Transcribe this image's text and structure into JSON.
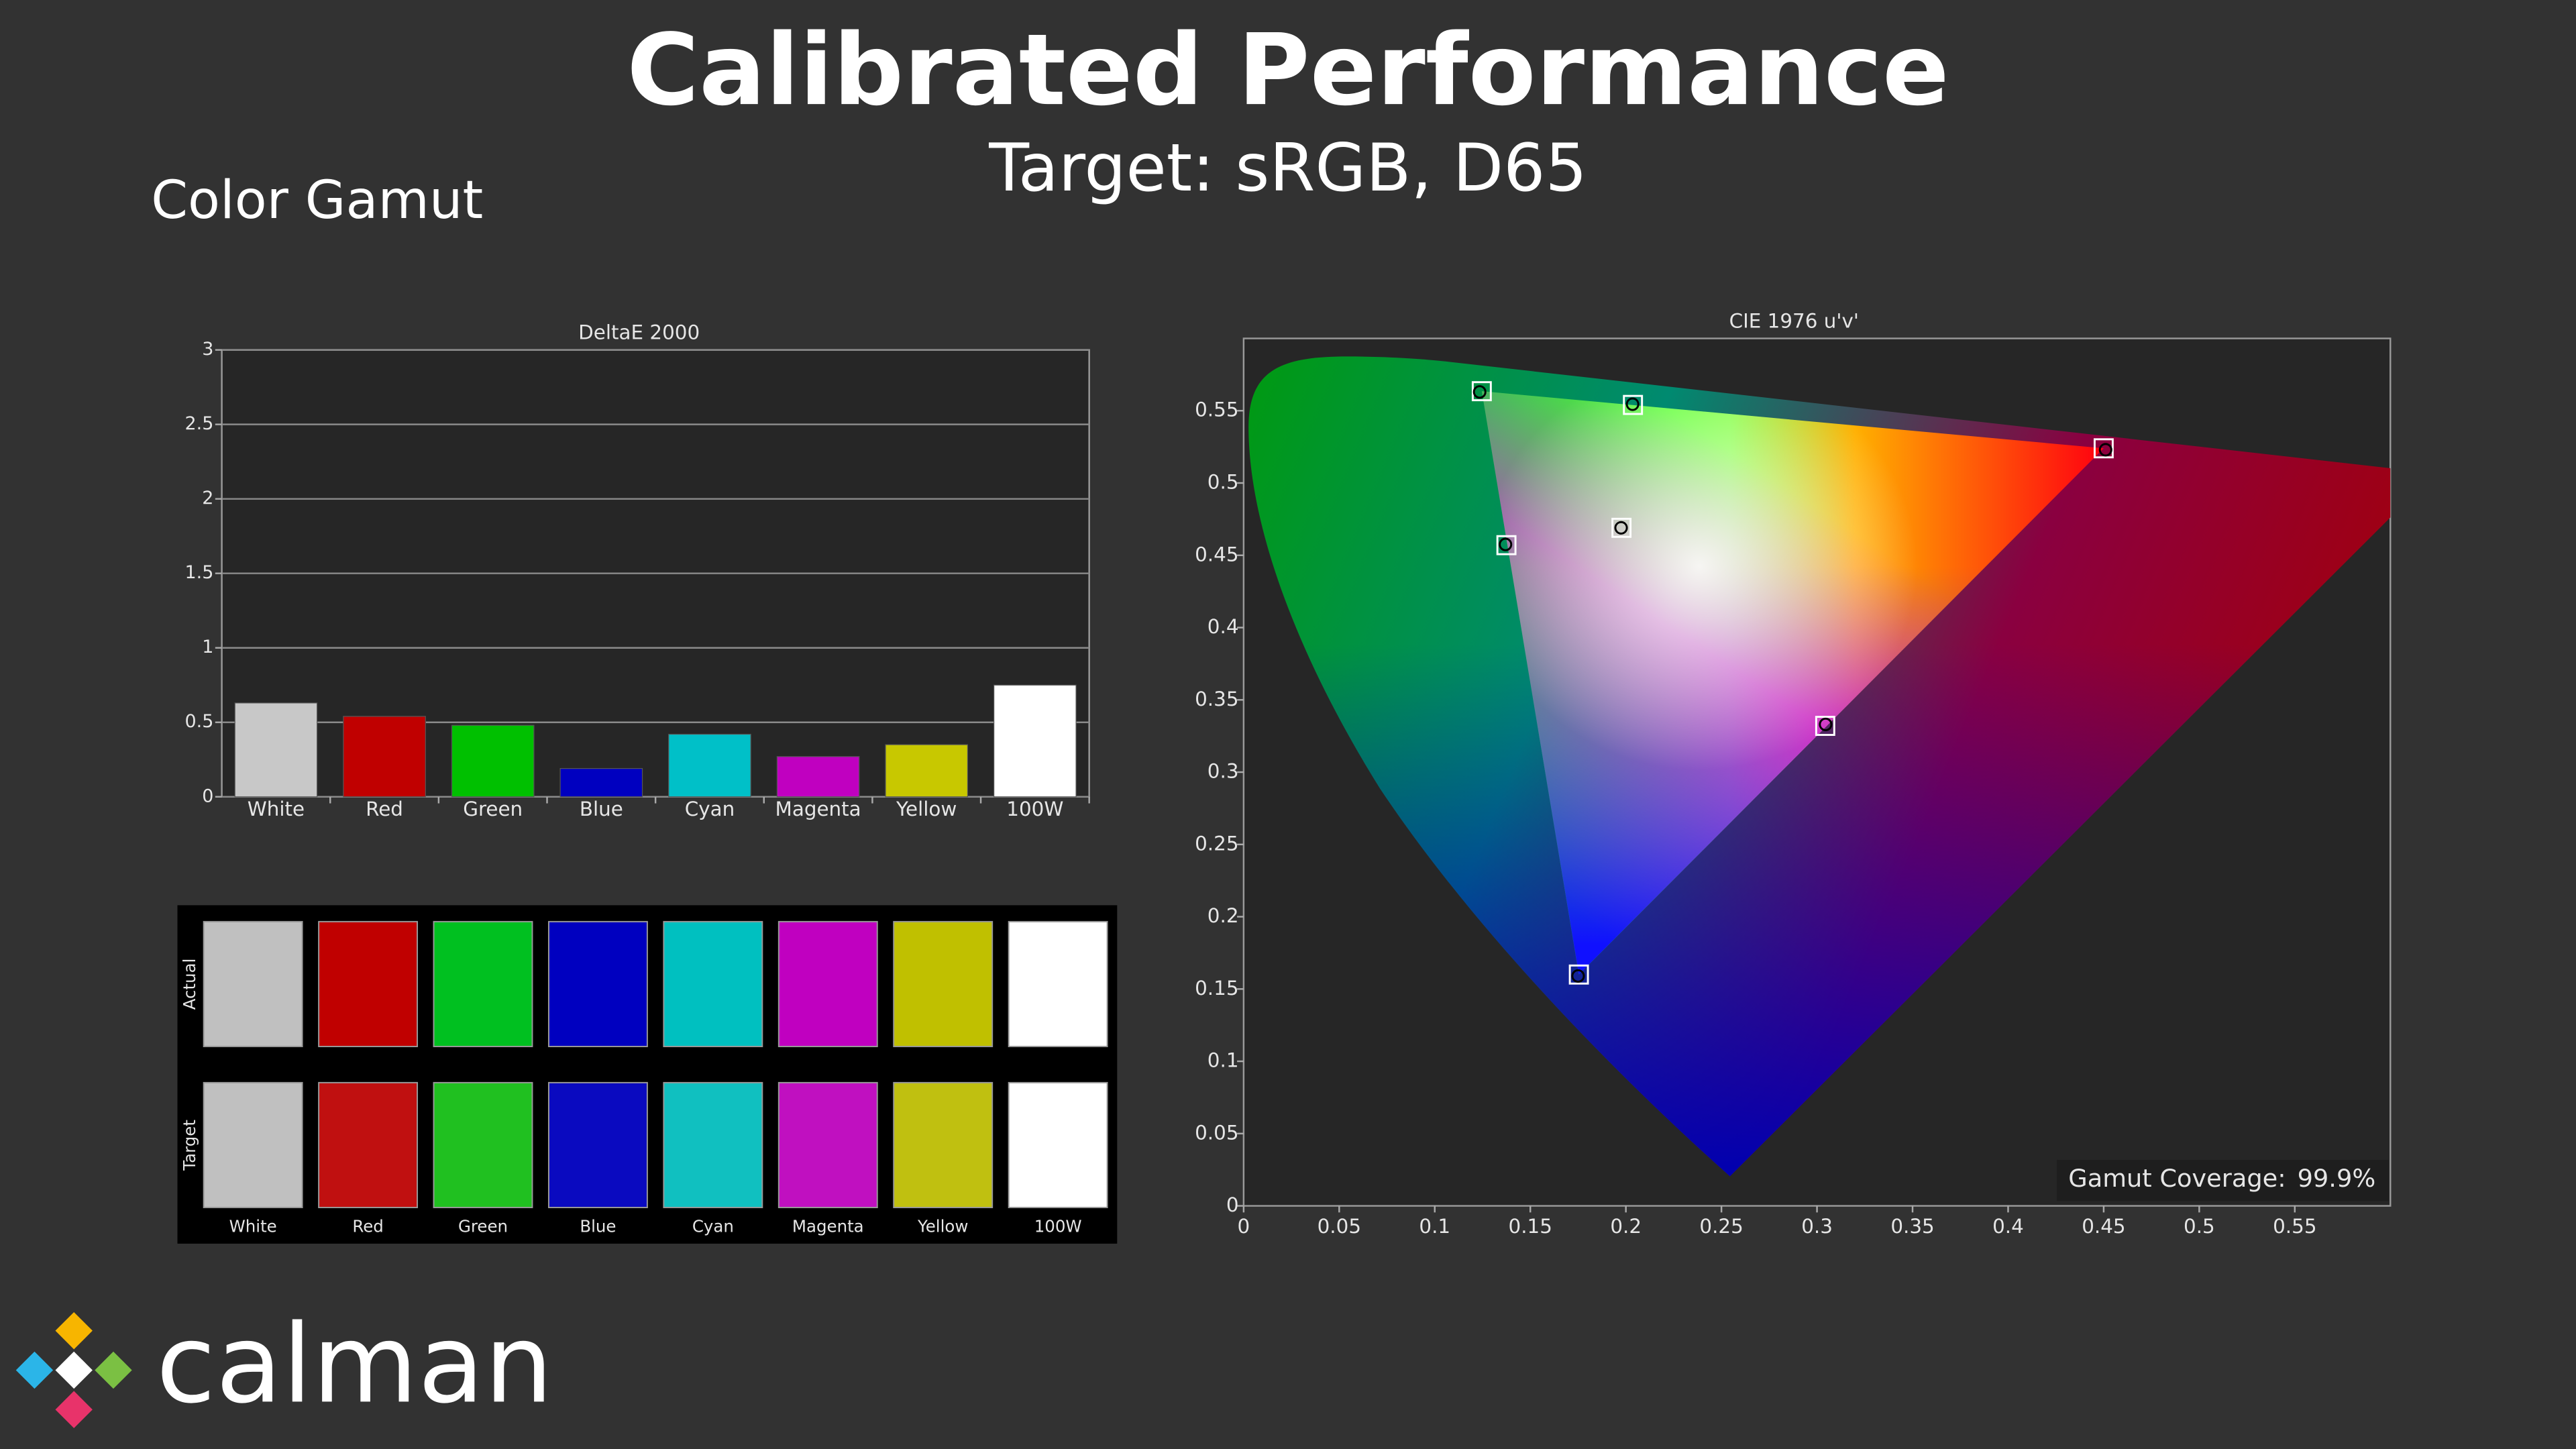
{
  "header": {
    "title": "Calibrated Performance",
    "subtitle": "Target: sRGB, D65",
    "section": "Color Gamut"
  },
  "chart_data": [
    {
      "type": "bar",
      "title": "DeltaE 2000",
      "categories": [
        "White",
        "Red",
        "Green",
        "Blue",
        "Cyan",
        "Magenta",
        "Yellow",
        "100W"
      ],
      "values": [
        0.63,
        0.54,
        0.48,
        0.19,
        0.42,
        0.27,
        0.35,
        0.75
      ],
      "colors": [
        "#c8c8c8",
        "#c00000",
        "#00c000",
        "#0000c0",
        "#00c0c8",
        "#c000c0",
        "#c8c800",
        "#ffffff"
      ],
      "ylim": [
        0,
        3
      ],
      "yticks": [
        0,
        0.5,
        1,
        1.5,
        2,
        2.5,
        3
      ],
      "grid": true
    },
    {
      "type": "scatter",
      "title": "CIE 1976 u'v'",
      "xlim": [
        0,
        0.6
      ],
      "ylim": [
        0,
        0.6
      ],
      "xticks": [
        0,
        0.05,
        0.1,
        0.15,
        0.2,
        0.25,
        0.3,
        0.35,
        0.4,
        0.45,
        0.5,
        0.55
      ],
      "yticks": [
        0,
        0.05,
        0.1,
        0.15,
        0.2,
        0.25,
        0.3,
        0.35,
        0.4,
        0.45,
        0.5,
        0.55
      ],
      "series": [
        {
          "marker": "square",
          "color": "#ffffff",
          "x": [
            0.1977,
            0.45,
            0.1246,
            0.1754,
            0.1375,
            0.3043,
            0.2037
          ],
          "y": [
            0.469,
            0.524,
            0.5635,
            0.16,
            0.457,
            0.332,
            0.554
          ]
        },
        {
          "marker": "circle",
          "color": "#000000",
          "x": [
            0.1975,
            0.451,
            0.1235,
            0.175,
            0.137,
            0.3045,
            0.2035
          ],
          "y": [
            0.469,
            0.523,
            0.563,
            0.159,
            0.4575,
            0.333,
            0.5545
          ]
        }
      ],
      "annotation": {
        "label": "Gamut Coverage:",
        "value": "99.9%"
      }
    }
  ],
  "swatches": {
    "rows": [
      "Actual",
      "Target"
    ],
    "columns": [
      "White",
      "Red",
      "Green",
      "Blue",
      "Cyan",
      "Magenta",
      "Yellow",
      "100W"
    ],
    "actual_colors": [
      "#c0c0c0",
      "#c00000",
      "#00c020",
      "#0000c0",
      "#00c0c0",
      "#c000c0",
      "#c0c000",
      "#ffffff"
    ],
    "target_colors": [
      "#c0c0c0",
      "#c01010",
      "#20c020",
      "#0a0ac0",
      "#10c0c0",
      "#c010c0",
      "#c0c010",
      "#ffffff"
    ]
  },
  "logo": {
    "text": "calman"
  }
}
